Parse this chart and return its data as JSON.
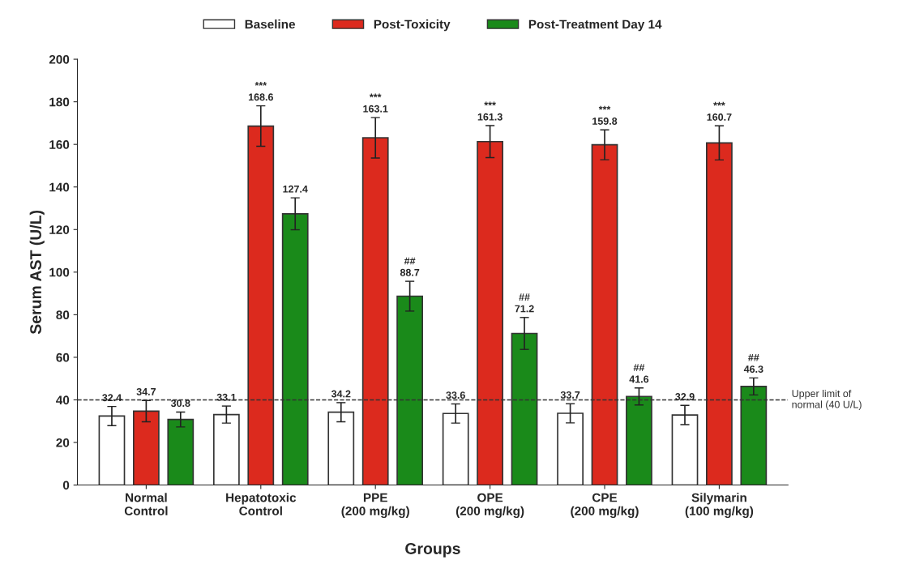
{
  "chart_data": {
    "type": "bar",
    "xlabel": "Groups",
    "ylabel": "Serum AST (U/L)",
    "categories": [
      "Normal\nControl",
      "Hepatotoxic\nControl",
      "PPE\n(200 mg/kg)",
      "OPE\n(200 mg/kg)",
      "CPE\n(200 mg/kg)",
      "Silymarin\n(100 mg/kg)"
    ],
    "series": [
      {
        "name": "Baseline",
        "color": "#ffffff",
        "values": [
          32.4,
          33.1,
          34.2,
          33.6,
          33.7,
          32.9
        ],
        "errors": [
          4.5,
          4,
          4.5,
          4.5,
          4.5,
          4.5
        ],
        "value_labels": [
          "32.4",
          "33.1",
          "34.2",
          "33.6",
          "33.7",
          "32.9"
        ]
      },
      {
        "name": "Post-Toxicity",
        "color": "#dc2a1e",
        "values": [
          34.7,
          168.6,
          163.1,
          161.3,
          159.8,
          160.7
        ],
        "errors": [
          5,
          9.5,
          9.5,
          7.5,
          7,
          8
        ],
        "value_labels": [
          "34.7",
          "***\n168.6",
          "***\n163.1",
          "***\n161.3",
          "***\n159.8",
          "***\n160.7"
        ]
      },
      {
        "name": "Post-Treatment Day 14",
        "color": "#1a8a1a",
        "values": [
          30.8,
          127.4,
          88.7,
          71.2,
          41.6,
          46.3
        ],
        "errors": [
          3.5,
          7.5,
          7,
          7.5,
          4,
          4
        ],
        "value_labels": [
          "30.8",
          "127.4",
          "##\n88.7",
          "##\n71.2",
          "##\n41.6",
          "##\n46.3"
        ]
      }
    ],
    "ylim": [
      0,
      200
    ],
    "yticks": [
      0,
      20,
      40,
      60,
      80,
      100,
      120,
      140,
      160,
      180,
      200
    ],
    "ref_lines": [
      {
        "axis": "y",
        "value": 40,
        "label": "Upper limit of\nnormal (40 U/L)",
        "color": "#333333",
        "line_style": "dashed"
      }
    ],
    "grid": false,
    "legend": "top"
  }
}
